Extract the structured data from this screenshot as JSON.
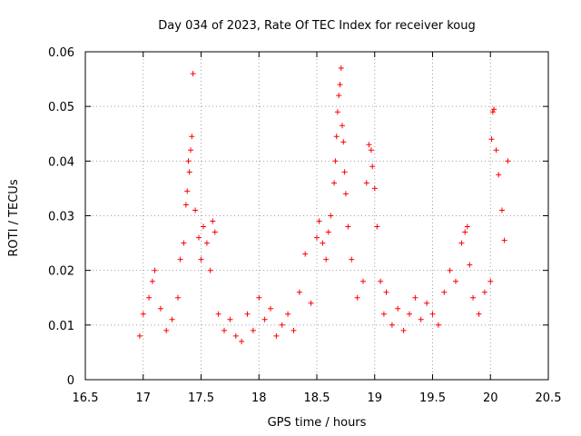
{
  "chart_data": {
    "type": "scatter",
    "title": "Day 034 of 2023, Rate Of TEC Index for receiver koug",
    "xlabel": "GPS time / hours",
    "ylabel": "ROTI / TECUs",
    "xlim": [
      16.5,
      20.5
    ],
    "ylim": [
      0,
      0.06
    ],
    "x_ticks": [
      16.5,
      17,
      17.5,
      18,
      18.5,
      19,
      19.5,
      20,
      20.5
    ],
    "x_tick_labels": [
      "16.5",
      "17",
      "17.5",
      "18",
      "18.5",
      "19",
      "19.5",
      "20",
      "20.5"
    ],
    "y_ticks": [
      0,
      0.01,
      0.02,
      0.03,
      0.04,
      0.05,
      0.06
    ],
    "y_tick_labels": [
      "0",
      "0.01",
      "0.02",
      "0.03",
      "0.04",
      "0.05",
      "0.06"
    ],
    "grid": true,
    "marker": "plus",
    "color": "#ff0000",
    "series": [
      {
        "name": "ROTI",
        "x": [
          16.97,
          17.0,
          17.05,
          17.08,
          17.1,
          17.15,
          17.2,
          17.25,
          17.3,
          17.32,
          17.35,
          17.37,
          17.38,
          17.39,
          17.4,
          17.41,
          17.42,
          17.43,
          17.45,
          17.48,
          17.5,
          17.52,
          17.55,
          17.58,
          17.6,
          17.62,
          17.65,
          17.7,
          17.75,
          17.8,
          17.85,
          17.9,
          17.95,
          18.0,
          18.05,
          18.1,
          18.15,
          18.2,
          18.25,
          18.3,
          18.35,
          18.4,
          18.45,
          18.5,
          18.52,
          18.55,
          18.58,
          18.6,
          18.62,
          18.65,
          18.66,
          18.67,
          18.68,
          18.69,
          18.7,
          18.71,
          18.72,
          18.73,
          18.74,
          18.75,
          18.77,
          18.8,
          18.85,
          18.9,
          18.93,
          18.95,
          18.97,
          18.98,
          19.0,
          19.02,
          19.05,
          19.08,
          19.1,
          19.15,
          19.2,
          19.25,
          19.3,
          19.35,
          19.4,
          19.45,
          19.5,
          19.55,
          19.6,
          19.65,
          19.7,
          19.75,
          19.78,
          19.8,
          19.82,
          19.85,
          19.9,
          19.95,
          20.0,
          20.01,
          20.02,
          20.03,
          20.05,
          20.07,
          20.1,
          20.12,
          20.15
        ],
        "y": [
          0.008,
          0.012,
          0.015,
          0.018,
          0.02,
          0.013,
          0.009,
          0.011,
          0.015,
          0.022,
          0.025,
          0.032,
          0.0345,
          0.04,
          0.038,
          0.042,
          0.0445,
          0.056,
          0.031,
          0.026,
          0.022,
          0.028,
          0.025,
          0.02,
          0.029,
          0.027,
          0.012,
          0.009,
          0.011,
          0.008,
          0.007,
          0.012,
          0.009,
          0.015,
          0.011,
          0.013,
          0.008,
          0.01,
          0.012,
          0.009,
          0.016,
          0.023,
          0.014,
          0.026,
          0.029,
          0.025,
          0.022,
          0.027,
          0.03,
          0.036,
          0.04,
          0.0445,
          0.049,
          0.052,
          0.054,
          0.057,
          0.0465,
          0.0435,
          0.038,
          0.034,
          0.028,
          0.022,
          0.015,
          0.018,
          0.036,
          0.043,
          0.042,
          0.039,
          0.035,
          0.028,
          0.018,
          0.012,
          0.016,
          0.01,
          0.013,
          0.009,
          0.012,
          0.015,
          0.011,
          0.014,
          0.012,
          0.01,
          0.016,
          0.02,
          0.018,
          0.025,
          0.027,
          0.028,
          0.021,
          0.015,
          0.012,
          0.016,
          0.018,
          0.044,
          0.049,
          0.0495,
          0.042,
          0.0375,
          0.031,
          0.0255,
          0.04
        ]
      }
    ]
  }
}
